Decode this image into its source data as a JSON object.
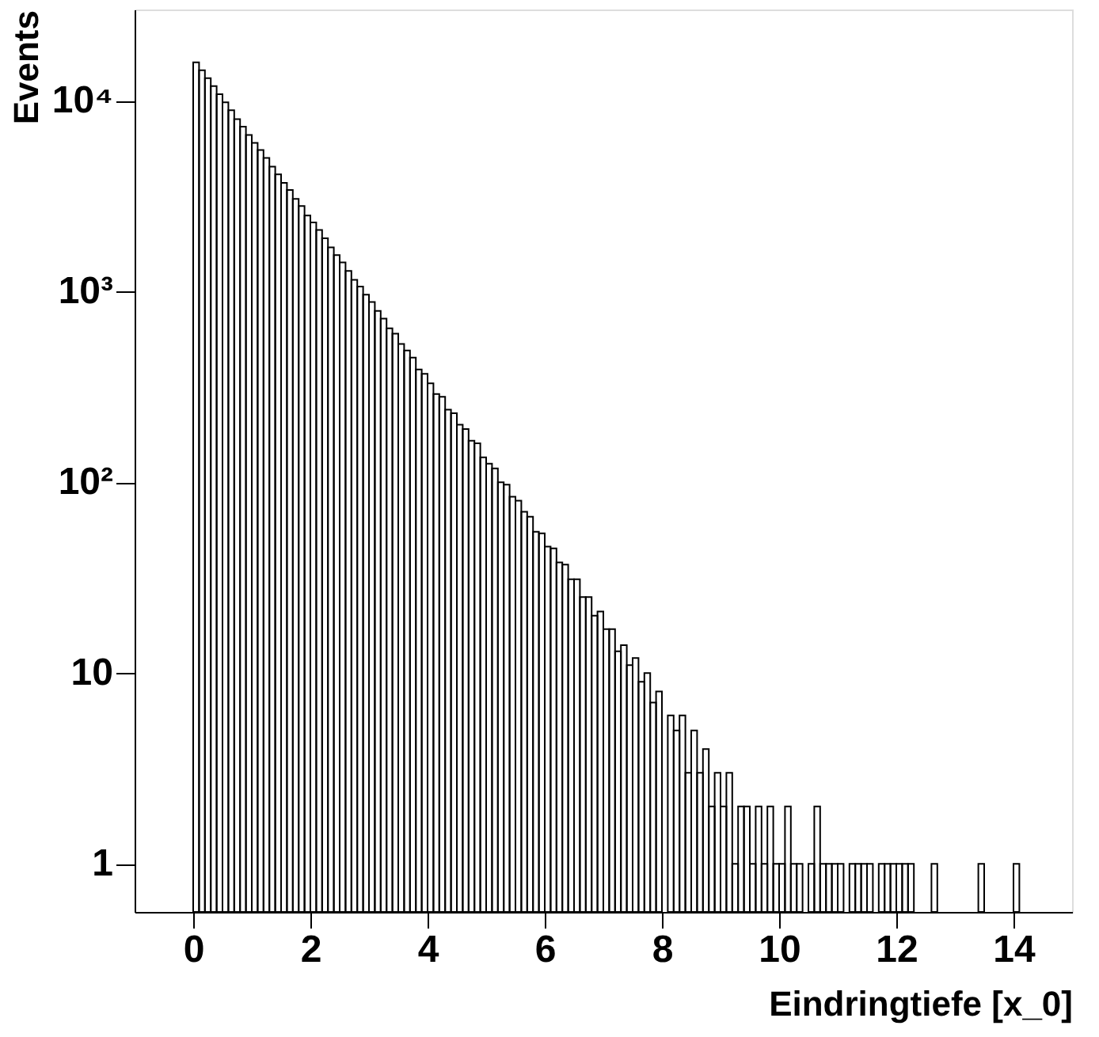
{
  "chart_data": {
    "type": "histogram",
    "xlabel": "Eindringtiefe [x_0]",
    "ylabel": "Events",
    "bins": [
      0,
      0.1,
      0.2,
      0.3,
      0.4,
      0.5,
      0.6,
      0.7,
      0.8,
      0.9,
      1,
      1.1,
      1.2,
      1.3,
      1.4,
      1.5,
      1.6,
      1.7,
      1.8,
      1.9,
      2,
      2.1,
      2.2,
      2.3,
      2.4,
      2.5,
      2.6,
      2.7,
      2.8,
      2.9,
      3,
      3.1,
      3.2,
      3.3,
      3.4,
      3.5,
      3.6,
      3.7,
      3.8,
      3.9,
      4,
      4.1,
      4.2,
      4.3,
      4.4,
      4.5,
      4.6,
      4.7,
      4.8,
      4.9,
      5,
      5.1,
      5.2,
      5.3,
      5.4,
      5.5,
      5.6,
      5.7,
      5.8,
      5.9,
      6,
      6.1,
      6.2,
      6.3,
      6.4,
      6.5,
      6.6,
      6.7,
      6.8,
      6.9,
      7,
      7.1,
      7.2,
      7.3,
      7.4,
      7.5,
      7.6,
      7.7,
      7.8,
      7.9,
      8,
      8.1,
      8.2,
      8.3,
      8.4,
      8.5,
      8.6,
      8.7,
      8.8,
      8.9,
      9,
      9.1,
      9.2,
      9.3,
      9.4,
      9.5,
      9.6,
      9.7,
      9.8,
      9.9,
      10,
      10.1,
      10.2,
      10.3,
      10.4,
      10.5,
      10.6,
      10.7,
      10.8,
      10.9,
      11,
      11.1,
      11.2,
      11.3,
      11.4,
      11.5,
      11.6,
      11.7,
      11.8,
      11.9,
      12,
      12.1,
      12.2,
      12.3,
      12.4,
      12.5,
      12.6,
      12.7,
      12.8,
      12.9,
      13,
      13.1,
      13.2,
      13.3,
      13.4,
      13.5,
      13.6,
      13.7,
      13.8,
      13.9,
      14,
      14.1
    ],
    "values": [
      15850,
      14400,
      13100,
      11900,
      10800,
      9800,
      8900,
      8000,
      7300,
      6600,
      6000,
      5500,
      5000,
      4500,
      4100,
      3700,
      3400,
      3050,
      2800,
      2500,
      2300,
      2100,
      1900,
      1700,
      1550,
      1420,
      1280,
      1150,
      1060,
      960,
      880,
      790,
      720,
      640,
      600,
      530,
      490,
      450,
      390,
      370,
      330,
      290,
      280,
      240,
      230,
      200,
      190,
      165,
      160,
      135,
      125,
      118,
      100,
      97,
      84,
      80,
      70,
      66,
      55,
      54,
      46,
      45,
      38,
      37,
      31,
      31,
      25,
      25,
      20,
      21,
      17,
      17,
      13,
      14,
      11,
      12,
      9,
      10,
      7,
      8,
      null,
      6,
      5,
      6,
      3,
      5,
      3,
      4,
      2,
      3,
      2,
      3,
      1,
      2,
      2,
      1,
      2,
      1,
      2,
      1,
      1,
      2,
      1,
      1,
      null,
      1,
      2,
      1,
      1,
      1,
      1,
      null,
      1,
      1,
      1,
      1,
      null,
      1,
      1,
      1,
      1,
      1,
      1,
      null,
      null,
      null,
      1,
      null,
      null,
      null,
      null,
      null,
      null,
      null,
      1,
      null,
      null,
      null,
      null,
      null,
      1
    ],
    "color": "#000000",
    "xlim": [
      -1,
      15
    ],
    "xticks": [
      0,
      2,
      4,
      6,
      8,
      10,
      12,
      14
    ],
    "log": true,
    "ylim": [
      0.56,
      30000
    ],
    "yticks": [
      1,
      10,
      {
        "value": 100,
        "label": "10²"
      },
      {
        "value": 1000,
        "label": "10³"
      },
      {
        "value": 10000,
        "label": "10⁴"
      }
    ],
    "grid": false
  }
}
